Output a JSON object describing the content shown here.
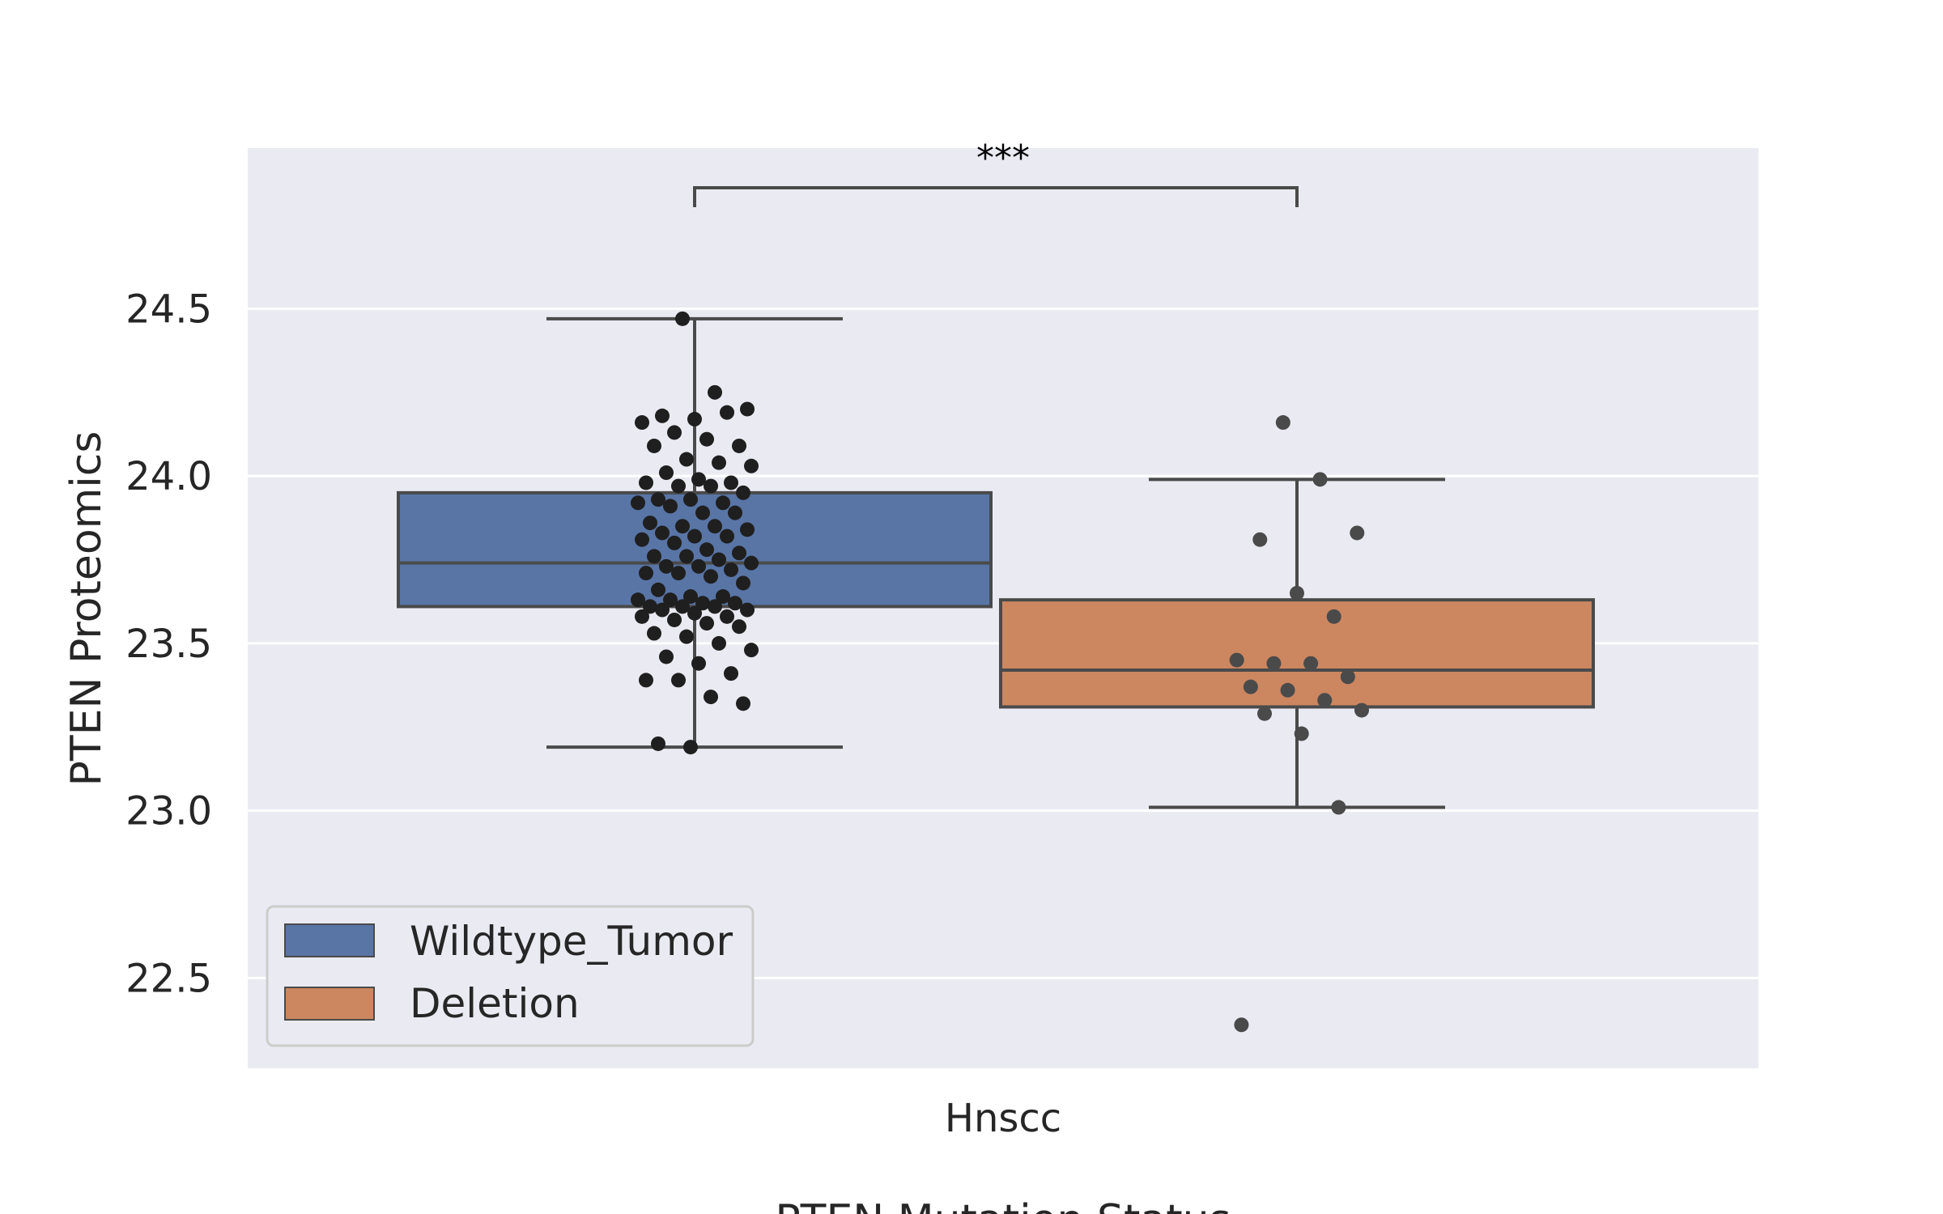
{
  "chart_data": {
    "type": "box",
    "xlabel": "PTEN Mutation Status",
    "ylabel": "PTEN Proteomics",
    "categories": [
      "Hnscc"
    ],
    "ylim": [
      22.23,
      24.98
    ],
    "yticks": [
      "22.5",
      "23.0",
      "23.5",
      "24.0",
      "24.5"
    ],
    "grid": true,
    "legend_position": "lower-left",
    "significance": {
      "label": "***",
      "between": [
        "Wildtype_Tumor",
        "Deletion"
      ]
    },
    "colors": {
      "background": "#eaeaf2",
      "grid": "#ffffff",
      "edge": "#4a4a4a",
      "Wildtype_Tumor": "#5875a6",
      "Deletion": "#cc8760",
      "points_wildtype": "#1f1f1f",
      "points_deletion": "#4a4a4a"
    },
    "series": [
      {
        "name": "Wildtype_Tumor",
        "whisker_low": 23.19,
        "q1": 23.61,
        "median": 23.74,
        "q3": 23.95,
        "whisker_high": 24.47,
        "points": [
          24.47,
          24.25,
          24.2,
          24.18,
          24.17,
          24.19,
          24.16,
          24.13,
          24.11,
          24.09,
          24.09,
          24.05,
          24.04,
          24.03,
          24.01,
          23.99,
          23.98,
          23.98,
          23.97,
          23.97,
          23.95,
          23.93,
          23.93,
          23.92,
          23.92,
          23.91,
          23.89,
          23.89,
          23.86,
          23.85,
          23.85,
          23.84,
          23.83,
          23.82,
          23.82,
          23.81,
          23.8,
          23.78,
          23.77,
          23.76,
          23.76,
          23.75,
          23.74,
          23.73,
          23.73,
          23.72,
          23.71,
          23.71,
          23.7,
          23.68,
          23.66,
          23.64,
          23.64,
          23.63,
          23.63,
          23.62,
          23.62,
          23.61,
          23.61,
          23.61,
          23.6,
          23.6,
          23.59,
          23.58,
          23.58,
          23.57,
          23.56,
          23.55,
          23.53,
          23.52,
          23.5,
          23.48,
          23.46,
          23.44,
          23.41,
          23.39,
          23.39,
          23.34,
          23.32,
          23.2,
          23.19
        ]
      },
      {
        "name": "Deletion",
        "whisker_low": 23.01,
        "q1": 23.31,
        "median": 23.42,
        "q3": 23.63,
        "whisker_high": 23.99,
        "points": [
          24.16,
          23.99,
          23.83,
          23.81,
          23.65,
          23.58,
          23.45,
          23.44,
          23.44,
          23.4,
          23.37,
          23.36,
          23.33,
          23.3,
          23.29,
          23.23,
          23.01,
          22.36
        ]
      }
    ]
  }
}
